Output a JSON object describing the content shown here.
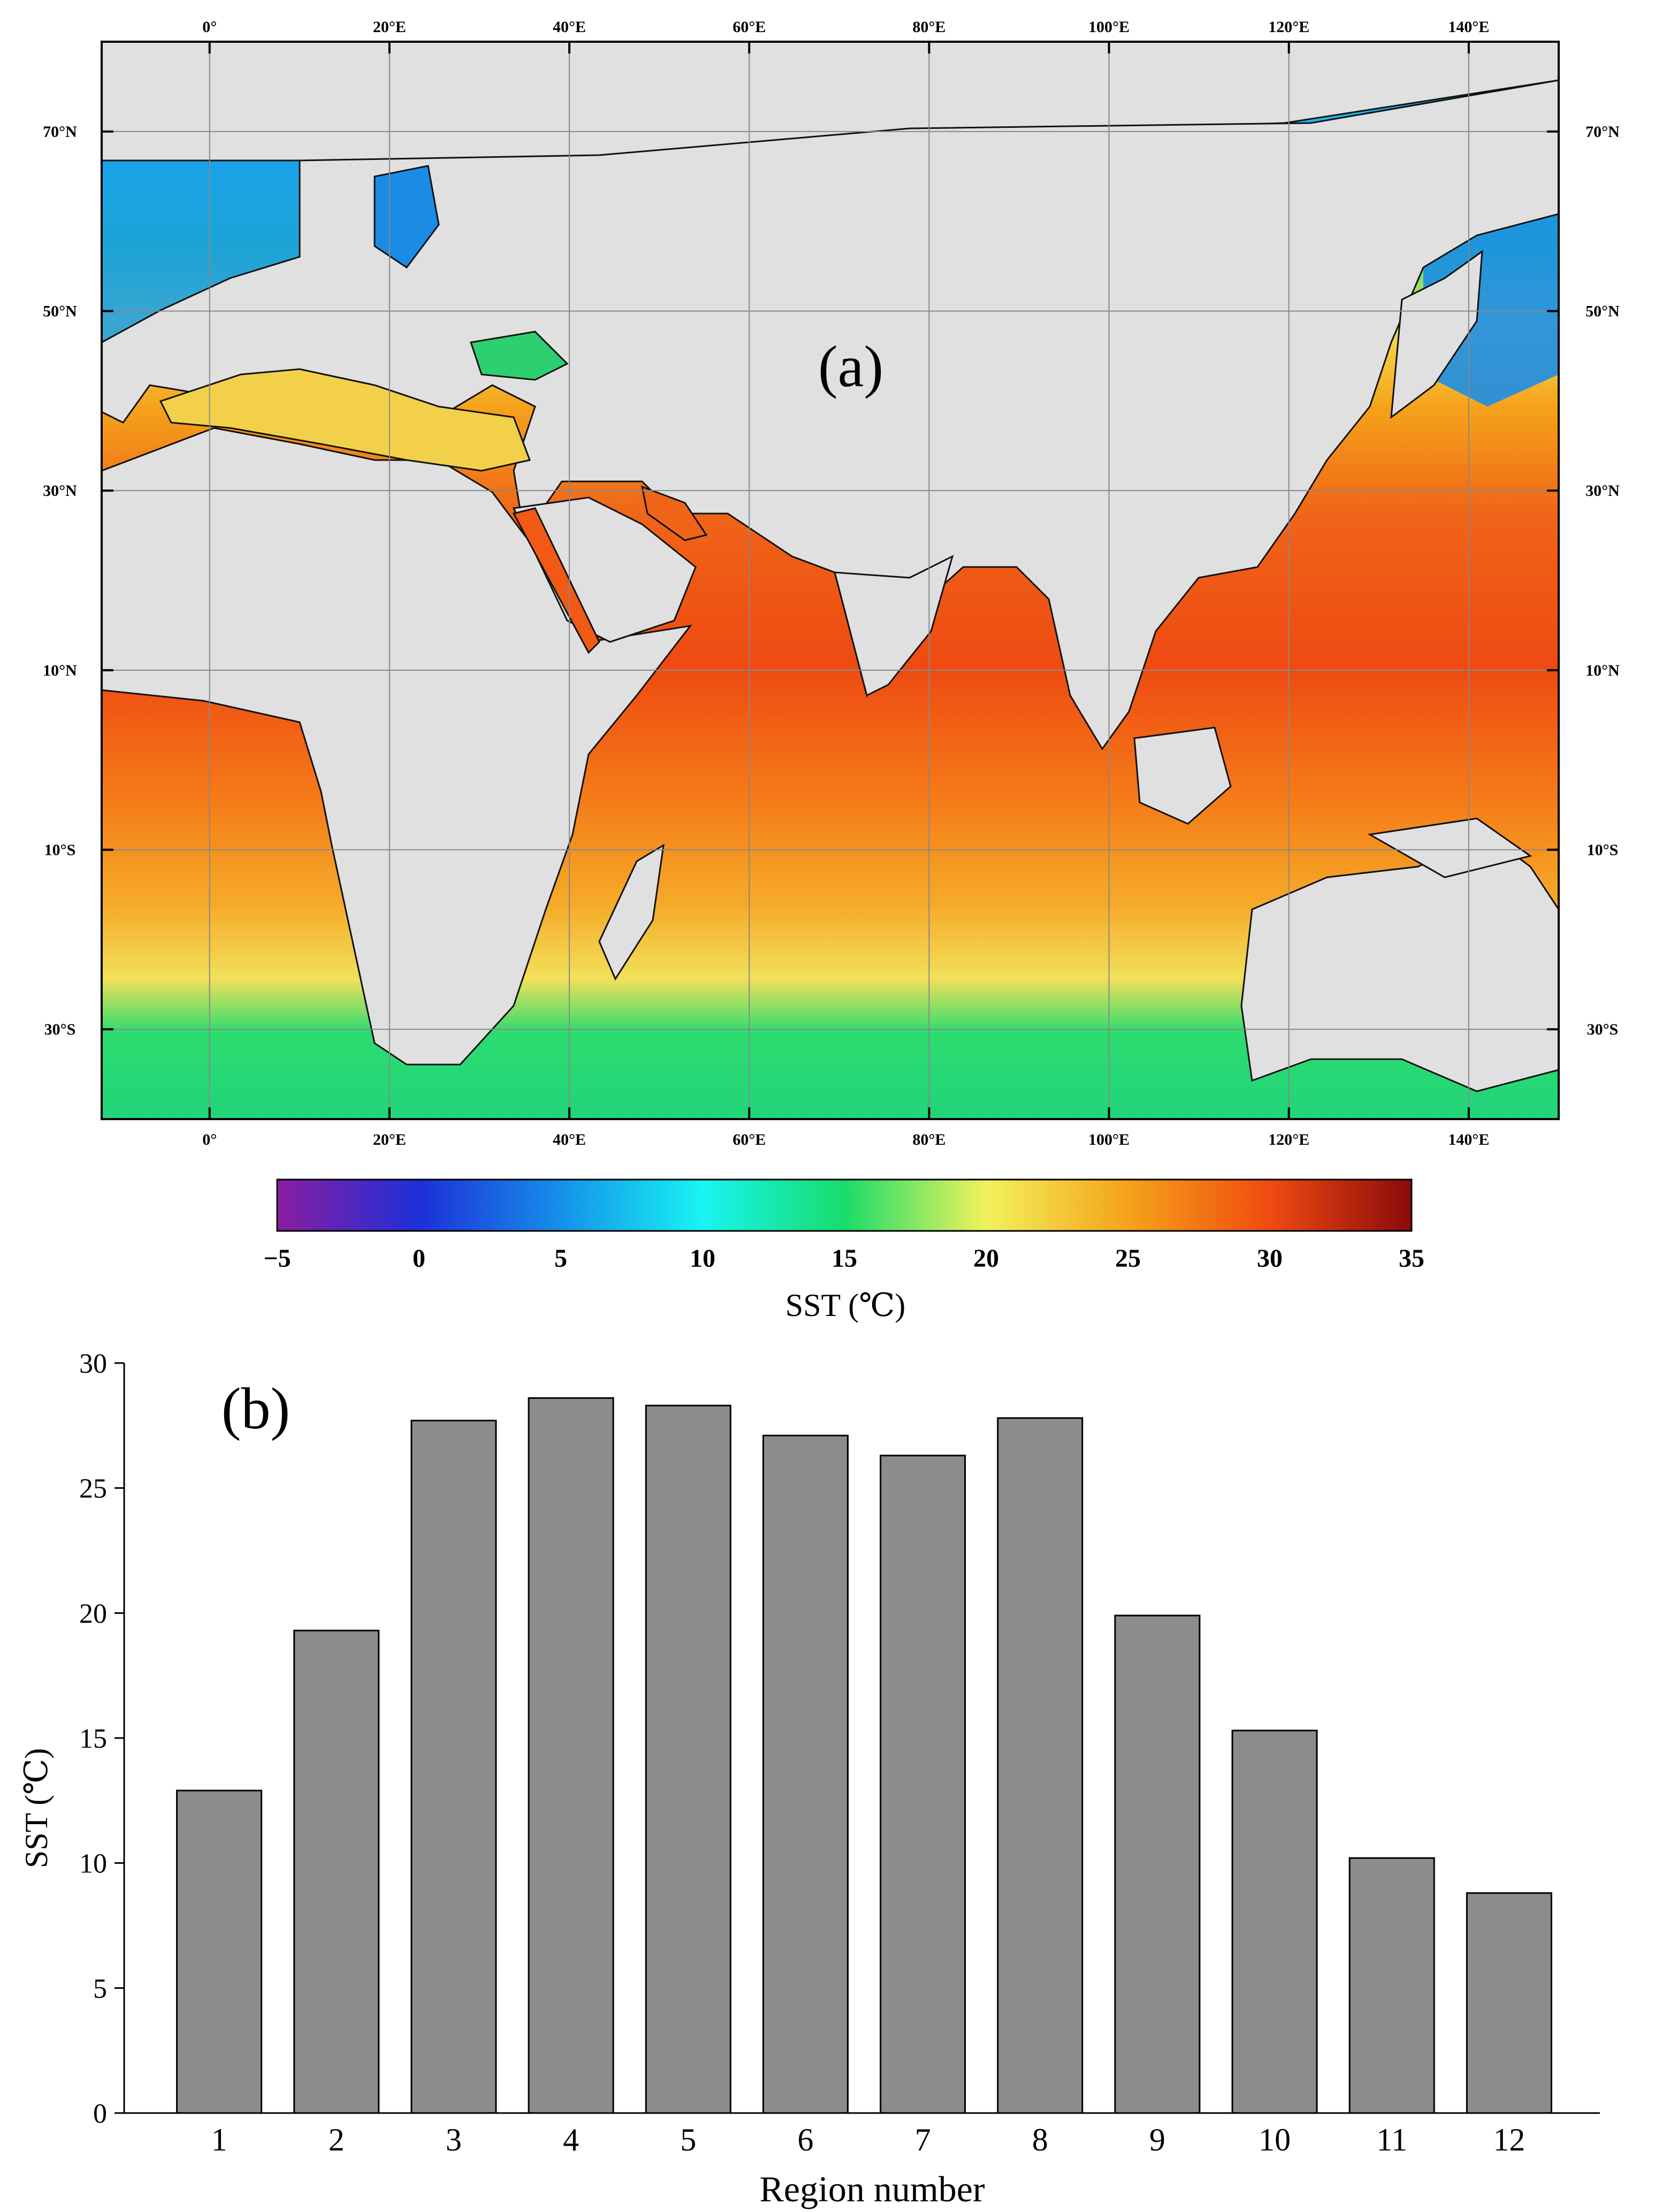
{
  "panel_a": {
    "label": "(a)",
    "lon_ticks": [
      "0°",
      "20°E",
      "40°E",
      "60°E",
      "80°E",
      "100°E",
      "120°E",
      "140°E"
    ],
    "lon_values": [
      0,
      20,
      40,
      60,
      80,
      100,
      120,
      140
    ],
    "lon_range": [
      -12,
      150
    ],
    "lat_ticks": [
      "70°N",
      "50°N",
      "30°N",
      "10°N",
      "10°S",
      "30°S"
    ],
    "lat_values": [
      70,
      50,
      30,
      10,
      -10,
      -30
    ],
    "lat_range": [
      -40,
      80
    ],
    "colorbar": {
      "ticks": [
        "−5",
        "0",
        "5",
        "10",
        "15",
        "20",
        "25",
        "30",
        "35"
      ],
      "tick_values": [
        -5,
        0,
        5,
        10,
        15,
        20,
        25,
        30,
        35
      ],
      "range": [
        -5,
        35
      ],
      "label": "SST (℃)",
      "colors": [
        "#8a1ea0",
        "#1d2fd8",
        "#1590ea",
        "#18f4f2",
        "#19dc6a",
        "#f2f25c",
        "#f5a21a",
        "#f04a10",
        "#8a0a0a"
      ]
    },
    "land_color": "#e0e0e0",
    "grid": true
  },
  "chart_data": {
    "type": "bar",
    "label": "(b)",
    "categories": [
      "1",
      "2",
      "3",
      "4",
      "5",
      "6",
      "7",
      "8",
      "9",
      "10",
      "11",
      "12"
    ],
    "values": [
      12.9,
      19.3,
      27.7,
      28.6,
      28.3,
      27.1,
      26.3,
      27.8,
      19.9,
      15.3,
      10.2,
      8.8
    ],
    "xlabel": "Region number",
    "ylabel": "SST (℃)",
    "ylim": [
      0,
      30
    ],
    "yticks": [
      "0",
      "5",
      "10",
      "15",
      "20",
      "25",
      "30"
    ],
    "ytick_values": [
      0,
      5,
      10,
      15,
      20,
      25,
      30
    ],
    "bar_color": "#8c8c8c",
    "grid": false
  }
}
